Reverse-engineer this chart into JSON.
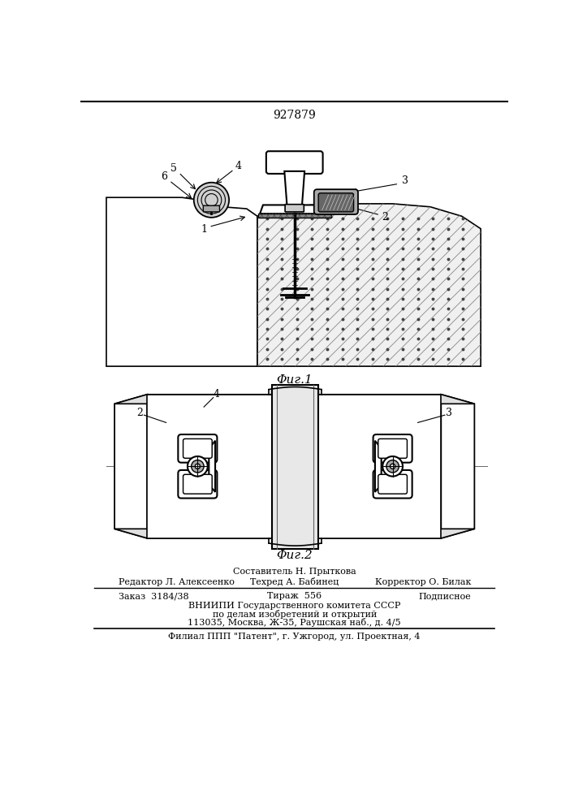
{
  "patent_number": "927879",
  "fig1_label": "Φиг.1",
  "fig2_label": "Φиг.2",
  "footer": {
    "line1_center": "Составитель Н. Прыткова",
    "line2_left": "Редактор Л. Алексеенко",
    "line2_center": "Техред А. Бабинец",
    "line2_right": "Корректор О. Билак",
    "line3_left": "Заказ  3184/38",
    "line3_center": "Тираж  556",
    "line3_right": "Подписное",
    "line4": "ВНИИПИ Государственного комитета СССР",
    "line5": "по делам изобретений и открытий",
    "line6": "113035, Москва, Ж-35, Раушская наб., д. 4/5",
    "line7": "Филиал ППП \"Патент\", г. Ужгород, ул. Проектная, 4"
  },
  "bg_color": "#ffffff",
  "line_color": "#000000"
}
